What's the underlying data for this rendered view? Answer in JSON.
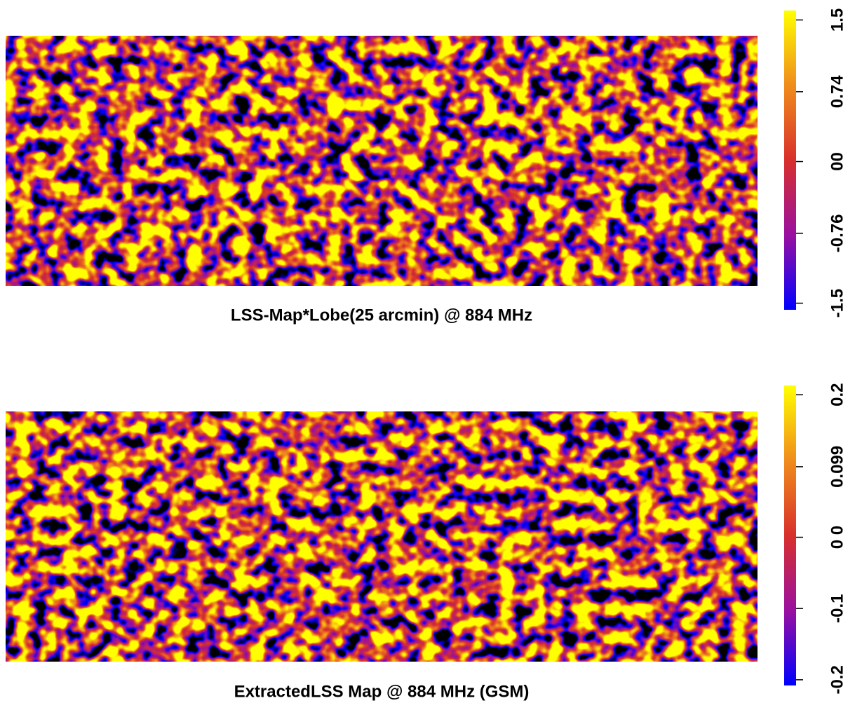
{
  "chart_data": [
    {
      "type": "heatmap",
      "title": "LSS-Map*Lobe(25 arcmin) @ 884 MHz",
      "zlim": [
        -1.57,
        1.6
      ],
      "zticks": [
        1.5,
        0.74,
        {
          "value": 0,
          "label": "00"
        },
        -0.76,
        -1.5
      ],
      "colormap": [
        "#0000ff",
        "#9a10a0",
        "#d8302c",
        "#f08c1c",
        "#ffff00"
      ]
    },
    {
      "type": "heatmap",
      "title": "ExtractedLSS Map @ 884 MHz (GSM)",
      "zlim": [
        -0.208,
        0.213
      ],
      "zticks": [
        0.2,
        0.099,
        {
          "value": 0,
          "label": "0 0"
        },
        -0.1,
        -0.2
      ],
      "colormap": [
        "#0000ff",
        "#9a10a0",
        "#d8302c",
        "#f08c1c",
        "#ffff00"
      ]
    }
  ]
}
